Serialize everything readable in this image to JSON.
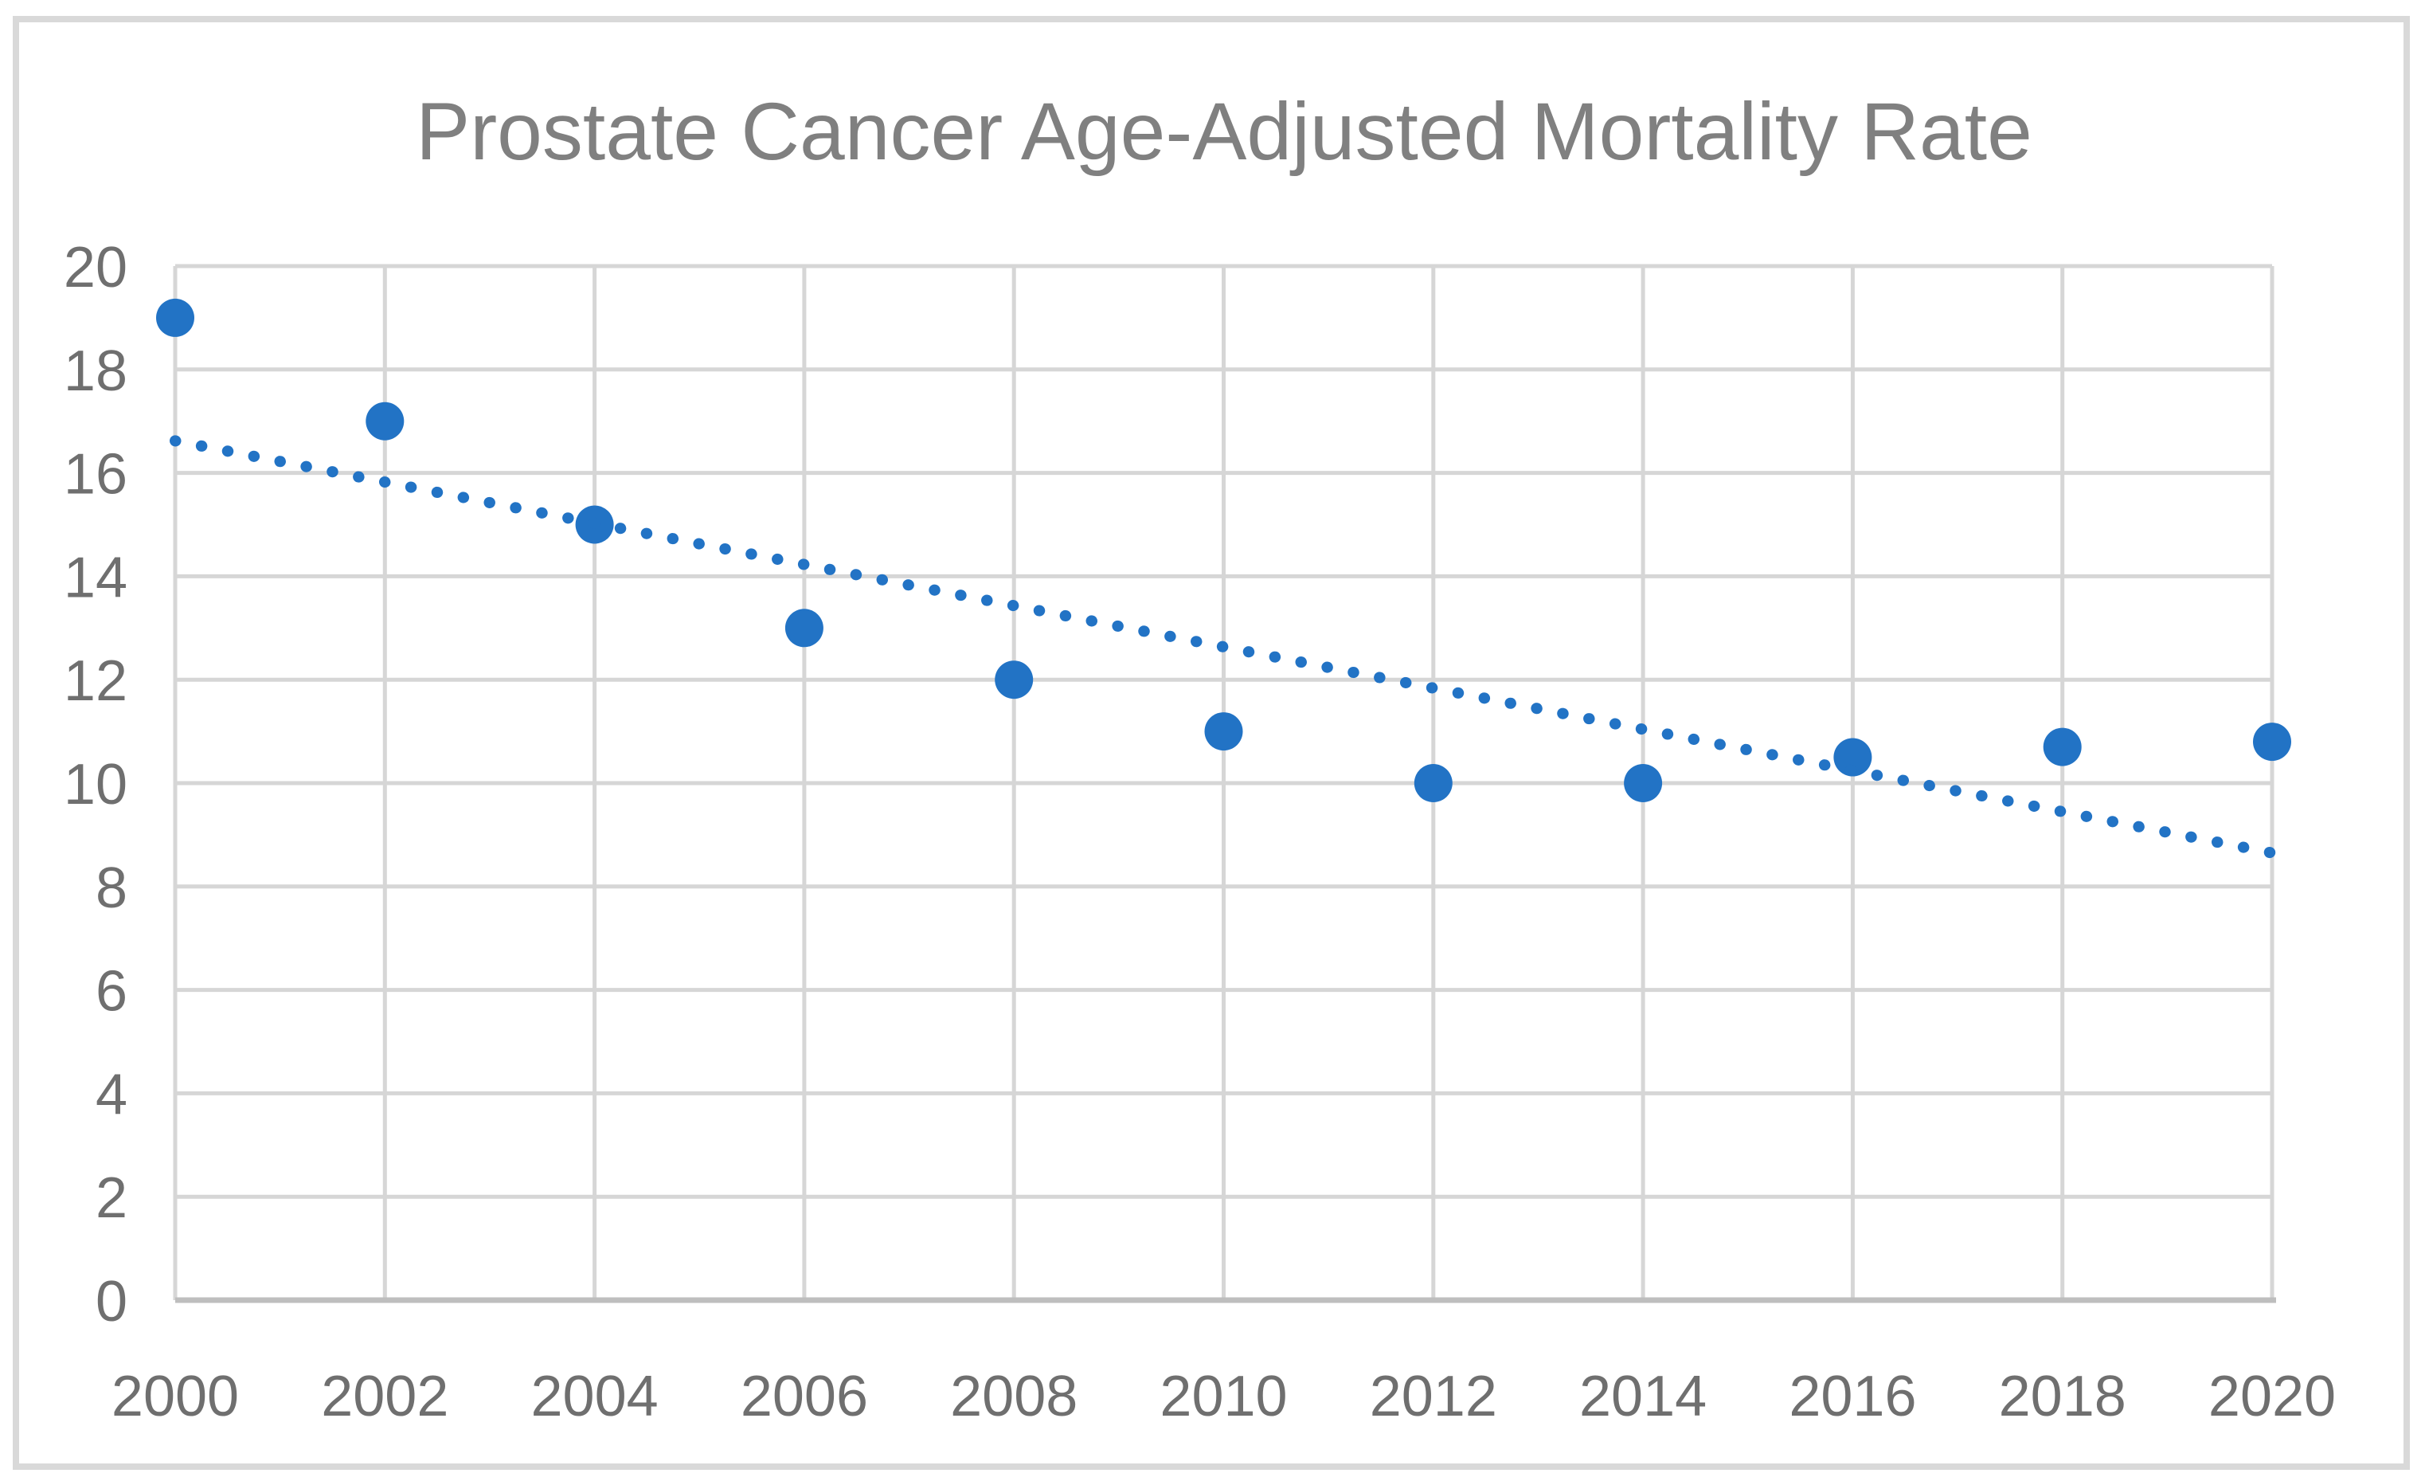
{
  "chart_data": {
    "type": "scatter",
    "title": "Prostate Cancer Age-Adjusted Mortality Rate",
    "categories": [
      2000,
      2002,
      2004,
      2006,
      2008,
      2010,
      2012,
      2014,
      2016,
      2018,
      2020
    ],
    "series": [
      {
        "name": "Age-Adjusted Mortality Rate",
        "values": [
          19,
          17,
          15,
          13,
          12,
          11,
          10,
          10,
          10.5,
          10.7,
          10.8
        ]
      }
    ],
    "trendline": {
      "kind": "linear",
      "style": "dotted",
      "start": {
        "x": 2000,
        "y": 16.62
      },
      "end": {
        "x": 2020,
        "y": 8.65
      }
    },
    "xlabel": "",
    "ylabel": "",
    "xlim": [
      2000,
      2020
    ],
    "ylim": [
      0,
      20
    ],
    "x_ticks": [
      2000,
      2002,
      2004,
      2006,
      2008,
      2010,
      2012,
      2014,
      2016,
      2018,
      2020
    ],
    "y_ticks": [
      0,
      2,
      4,
      6,
      8,
      10,
      12,
      14,
      16,
      18,
      20
    ],
    "grid": true,
    "legend": false,
    "colors": {
      "marker": "#2273C5",
      "trendline": "#2273C5",
      "gridline": "#D6D6D6",
      "axis_line": "#BEBEBE",
      "tick_label": "#6F6F6F",
      "title": "#808080",
      "border": "#D9D9D9",
      "background": "#FFFFFF"
    }
  }
}
